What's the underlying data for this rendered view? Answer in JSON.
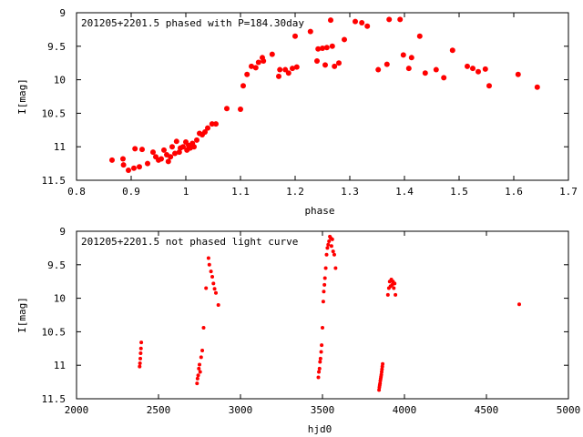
{
  "colors": {
    "points": "#ff0000",
    "axes": "#000000",
    "background": "#ffffff"
  },
  "chart_data": [
    {
      "type": "scatter",
      "title": "201205+2201.5 phased with P=184.30day",
      "xlabel": "phase",
      "ylabel": "I[mag]",
      "xlim": [
        0.8,
        1.7
      ],
      "ylim": [
        11.5,
        9
      ],
      "y_inverted": true,
      "grid": false,
      "xticks": [
        "0.8",
        "0.9",
        "1",
        "1.1",
        "1.2",
        "1.3",
        "1.4",
        "1.5",
        "1.6",
        "1.7"
      ],
      "yticks": [
        "9",
        "9.5",
        "10",
        "10.5",
        "11",
        "11.5"
      ],
      "series": [
        {
          "points": [
            [
              0.865,
              11.2
            ],
            [
              0.885,
              11.18
            ],
            [
              0.886,
              11.27
            ],
            [
              0.895,
              11.35
            ],
            [
              0.905,
              11.32
            ],
            [
              0.907,
              11.03
            ],
            [
              0.915,
              11.3
            ],
            [
              0.92,
              11.04
            ],
            [
              0.93,
              11.25
            ],
            [
              0.94,
              11.08
            ],
            [
              0.945,
              11.15
            ],
            [
              0.95,
              11.2
            ],
            [
              0.955,
              11.18
            ],
            [
              0.96,
              11.05
            ],
            [
              0.965,
              11.12
            ],
            [
              0.968,
              11.22
            ],
            [
              0.972,
              11.15
            ],
            [
              0.975,
              11.0
            ],
            [
              0.98,
              11.1
            ],
            [
              0.983,
              10.92
            ],
            [
              0.988,
              11.08
            ],
            [
              0.99,
              11.02
            ],
            [
              0.995,
              11.0
            ],
            [
              1.0,
              10.93
            ],
            [
              1.002,
              11.05
            ],
            [
              1.005,
              10.98
            ],
            [
              1.008,
              11.02
            ],
            [
              1.012,
              10.95
            ],
            [
              1.015,
              11.0
            ],
            [
              1.02,
              10.9
            ],
            [
              1.025,
              10.8
            ],
            [
              1.03,
              10.82
            ],
            [
              1.035,
              10.78
            ],
            [
              1.04,
              10.72
            ],
            [
              1.048,
              10.66
            ],
            [
              1.055,
              10.66
            ],
            [
              1.075,
              10.43
            ],
            [
              1.1,
              10.44
            ],
            [
              1.105,
              10.09
            ],
            [
              1.112,
              9.92
            ],
            [
              1.12,
              9.8
            ],
            [
              1.128,
              9.82
            ],
            [
              1.133,
              9.74
            ],
            [
              1.14,
              9.67
            ],
            [
              1.142,
              9.72
            ],
            [
              1.158,
              9.62
            ],
            [
              1.17,
              9.95
            ],
            [
              1.172,
              9.85
            ],
            [
              1.182,
              9.85
            ],
            [
              1.188,
              9.9
            ],
            [
              1.195,
              9.83
            ],
            [
              1.2,
              9.35
            ],
            [
              1.203,
              9.81
            ],
            [
              1.228,
              9.28
            ],
            [
              1.24,
              9.72
            ],
            [
              1.242,
              9.54
            ],
            [
              1.25,
              9.53
            ],
            [
              1.255,
              9.78
            ],
            [
              1.258,
              9.52
            ],
            [
              1.265,
              9.11
            ],
            [
              1.268,
              9.5
            ],
            [
              1.272,
              9.8
            ],
            [
              1.28,
              9.75
            ],
            [
              1.29,
              9.4
            ],
            [
              1.31,
              9.13
            ],
            [
              1.322,
              9.15
            ],
            [
              1.332,
              9.2
            ],
            [
              1.352,
              9.85
            ],
            [
              1.368,
              9.77
            ],
            [
              1.372,
              9.1
            ],
            [
              1.392,
              9.1
            ],
            [
              1.398,
              9.63
            ],
            [
              1.408,
              9.83
            ],
            [
              1.413,
              9.67
            ],
            [
              1.428,
              9.35
            ],
            [
              1.438,
              9.9
            ],
            [
              1.458,
              9.85
            ],
            [
              1.472,
              9.97
            ],
            [
              1.488,
              9.56
            ],
            [
              1.515,
              9.8
            ],
            [
              1.525,
              9.83
            ],
            [
              1.535,
              9.88
            ],
            [
              1.548,
              9.84
            ],
            [
              1.555,
              10.09
            ],
            [
              1.608,
              9.92
            ],
            [
              1.643,
              10.11
            ]
          ]
        }
      ]
    },
    {
      "type": "scatter",
      "title": "201205+2201.5 not phased light curve",
      "xlabel": "hjd0",
      "ylabel": "I[mag]",
      "xlim": [
        2000,
        5000
      ],
      "ylim": [
        11.5,
        9
      ],
      "y_inverted": true,
      "grid": false,
      "xticks": [
        "2000",
        "2500",
        "3000",
        "3500",
        "4000",
        "4500",
        "5000"
      ],
      "yticks": [
        "9",
        "9.5",
        "10",
        "10.5",
        "11",
        "11.5"
      ],
      "series": [
        {
          "points": [
            [
              2385,
              11.02
            ],
            [
              2387,
              10.97
            ],
            [
              2389,
              10.9
            ],
            [
              2391,
              10.82
            ],
            [
              2393,
              10.75
            ],
            [
              2395,
              10.66
            ],
            [
              2735,
              11.27
            ],
            [
              2738,
              11.2
            ],
            [
              2742,
              11.15
            ],
            [
              2746,
              11.05
            ],
            [
              2750,
              10.99
            ],
            [
              2754,
              11.1
            ],
            [
              2760,
              10.88
            ],
            [
              2767,
              10.78
            ],
            [
              2775,
              10.44
            ],
            [
              2790,
              9.85
            ],
            [
              2805,
              9.4
            ],
            [
              2810,
              9.5
            ],
            [
              2820,
              9.6
            ],
            [
              2828,
              9.68
            ],
            [
              2835,
              9.78
            ],
            [
              2842,
              9.86
            ],
            [
              2850,
              9.92
            ],
            [
              2865,
              10.1
            ],
            [
              3475,
              11.18
            ],
            [
              3478,
              11.1
            ],
            [
              3482,
              11.05
            ],
            [
              3485,
              10.95
            ],
            [
              3488,
              10.9
            ],
            [
              3492,
              10.8
            ],
            [
              3495,
              10.7
            ],
            [
              3500,
              10.44
            ],
            [
              3505,
              10.05
            ],
            [
              3508,
              9.9
            ],
            [
              3512,
              9.8
            ],
            [
              3515,
              9.7
            ],
            [
              3520,
              9.55
            ],
            [
              3525,
              9.35
            ],
            [
              3530,
              9.25
            ],
            [
              3535,
              9.2
            ],
            [
              3540,
              9.15
            ],
            [
              3545,
              9.08
            ],
            [
              3550,
              9.1
            ],
            [
              3555,
              9.22
            ],
            [
              3560,
              9.12
            ],
            [
              3565,
              9.3
            ],
            [
              3572,
              9.35
            ],
            [
              3580,
              9.55
            ],
            [
              3845,
              11.37
            ],
            [
              3847,
              11.33
            ],
            [
              3849,
              11.3
            ],
            [
              3851,
              11.27
            ],
            [
              3853,
              11.23
            ],
            [
              3855,
              11.2
            ],
            [
              3857,
              11.17
            ],
            [
              3859,
              11.14
            ],
            [
              3861,
              11.1
            ],
            [
              3863,
              11.06
            ],
            [
              3865,
              11.02
            ],
            [
              3867,
              10.98
            ],
            [
              3899,
              9.95
            ],
            [
              3905,
              9.85
            ],
            [
              3910,
              9.75
            ],
            [
              3915,
              9.82
            ],
            [
              3920,
              9.72
            ],
            [
              3925,
              9.8
            ],
            [
              3930,
              9.75
            ],
            [
              3935,
              9.85
            ],
            [
              3940,
              9.78
            ],
            [
              3945,
              9.95
            ],
            [
              4700,
              10.09
            ]
          ]
        }
      ]
    }
  ]
}
